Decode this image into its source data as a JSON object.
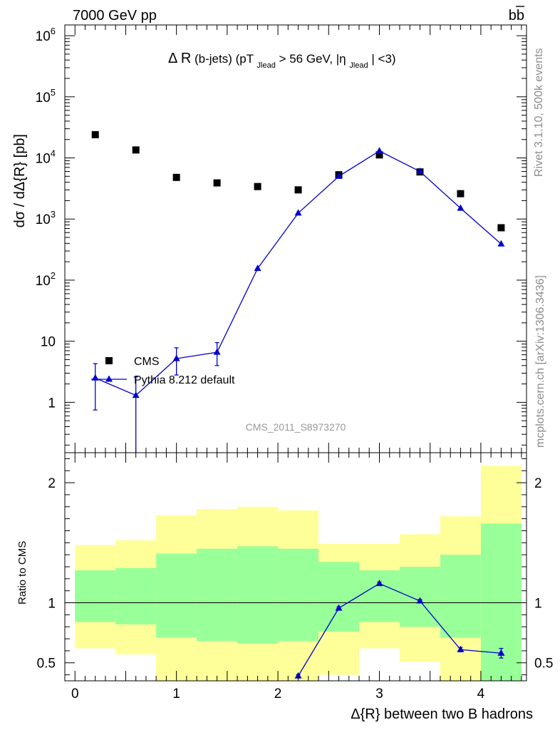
{
  "header": {
    "energy_label": "7000 GeV pp",
    "process_label": "bb",
    "title_main": "Δ R",
    "title_rest": "(b-jets) (pT",
    "title_sub1": "Jlead",
    "title_mid": " >  56 GeV, |η",
    "title_sub2": "Jlead",
    "title_end": "| <3)",
    "side_rivet": "Rivet 3.1.10,  500k events",
    "side_mcplots": "mcplots.cern.ch [arXiv:1306.3436]",
    "analysis_id": "CMS_2011_S8973270"
  },
  "chart_data": [
    {
      "type": "scatter",
      "name": "main",
      "ylabel": "dσ / dΔ{R} [pb]",
      "yscale": "log",
      "xlim": [
        -0.1,
        4.45
      ],
      "ylim": [
        0.15,
        1500000
      ],
      "y_tick_labels": [
        {
          "v": 1,
          "label": "1"
        },
        {
          "v": 10,
          "label": "10"
        },
        {
          "v": 100,
          "label": "10",
          "sup": "2"
        },
        {
          "v": 1000,
          "label": "10",
          "sup": "3"
        },
        {
          "v": 10000,
          "label": "10",
          "sup": "4"
        },
        {
          "v": 100000,
          "label": "10",
          "sup": "5"
        },
        {
          "v": 1000000,
          "label": "10",
          "sup": "6"
        }
      ],
      "legend": [
        {
          "name": "CMS",
          "marker": "square"
        },
        {
          "name": "Pythia 8.212 default",
          "marker": "triangle"
        }
      ],
      "series": [
        {
          "name": "CMS",
          "color": "#000000",
          "x": [
            0.2,
            0.6,
            1.0,
            1.4,
            1.8,
            2.2,
            2.6,
            3.0,
            3.4,
            3.8,
            4.2
          ],
          "y": [
            24000,
            13500,
            4800,
            3900,
            3400,
            3000,
            5300,
            11200,
            5900,
            2600,
            720
          ]
        },
        {
          "name": "Pythia 8.212 default",
          "color": "#0000cc",
          "x": [
            0.2,
            0.6,
            1.0,
            1.4,
            1.8,
            2.2,
            2.6,
            3.0,
            3.4,
            3.8,
            4.2
          ],
          "y": [
            2.5,
            1.3,
            5.2,
            6.6,
            155,
            1250,
            5000,
            13000,
            6000,
            1500,
            390
          ],
          "err_low": [
            1.75,
            1.3,
            2.4,
            2.6,
            0,
            0,
            0,
            0,
            0,
            0,
            0
          ],
          "err_high": [
            1.8,
            1.3,
            2.6,
            2.9,
            0,
            0,
            0,
            0,
            0,
            0,
            0
          ]
        }
      ]
    },
    {
      "type": "line",
      "name": "ratio",
      "ylabel": "Ratio to CMS",
      "xlabel": "Δ{R} between two B hadrons",
      "xlim": [
        -0.1,
        4.45
      ],
      "ylim": [
        0.35,
        2.25
      ],
      "x_ticks": [
        0,
        1,
        2,
        3,
        4
      ],
      "y_ticks": [
        0.5,
        1,
        2
      ],
      "x_tick_labels": [
        "0",
        "1",
        "2",
        "3",
        "4"
      ],
      "y_tick_labels": [
        "0.5",
        "1",
        "2"
      ],
      "bins": [
        0.0,
        0.4,
        0.8,
        1.2,
        1.6,
        2.0,
        2.4,
        2.8,
        3.2,
        3.6,
        4.0,
        4.4
      ],
      "band_yellow": {
        "low": [
          0.62,
          0.57,
          0.33,
          0.33,
          0.33,
          0.33,
          0.4,
          0.62,
          0.51,
          0.33,
          0.33
        ],
        "high": [
          1.48,
          1.52,
          1.73,
          1.78,
          1.8,
          1.77,
          1.49,
          1.49,
          1.57,
          1.72,
          2.14
        ]
      },
      "band_green": {
        "low": [
          0.84,
          0.82,
          0.71,
          0.68,
          0.66,
          0.68,
          0.76,
          0.84,
          0.8,
          0.71,
          0.33
        ],
        "high": [
          1.27,
          1.29,
          1.41,
          1.45,
          1.47,
          1.45,
          1.34,
          1.27,
          1.3,
          1.4,
          1.66
        ]
      },
      "series": [
        {
          "name": "Pythia 8.212 default",
          "color": "#0000cc",
          "x": [
            2.2,
            2.6,
            3.0,
            3.4,
            3.8,
            4.2
          ],
          "y": [
            0.39,
            0.955,
            1.16,
            1.015,
            0.61,
            0.58
          ],
          "err": [
            0.012,
            0.012,
            0.012,
            0.012,
            0.018,
            0.04
          ]
        }
      ]
    }
  ]
}
